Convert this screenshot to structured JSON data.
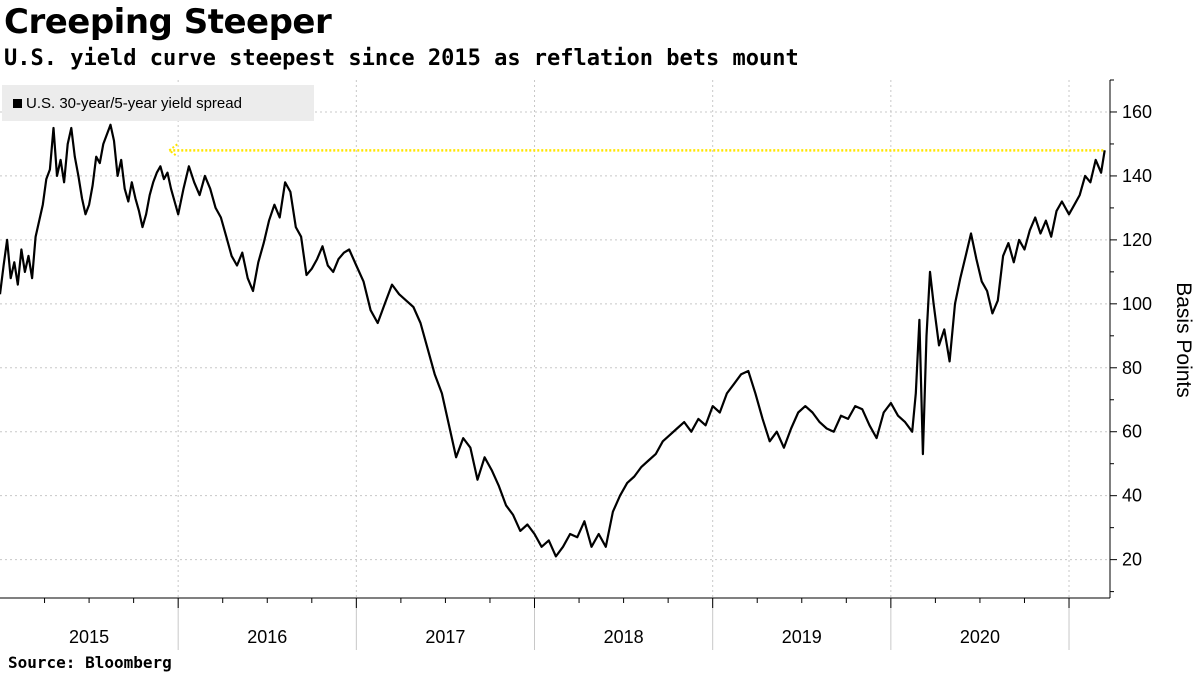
{
  "title": "Creeping Steeper",
  "subtitle": "U.S. yield curve steepest since 2015 as reflation bets mount",
  "source": "Source: Bloomberg",
  "colors": {
    "line": "#000000",
    "reference": "#ffe500",
    "grid": "#c8c8c8",
    "legend_bg": "#ececec"
  },
  "chart_data": {
    "type": "line",
    "title": "Creeping Steeper",
    "subtitle": "U.S. yield curve steepest since 2015 as reflation bets mount",
    "xlabel": "",
    "ylabel": "Basis Points",
    "ylim": [
      8,
      170
    ],
    "xlim": [
      2015.0,
      2021.23
    ],
    "yticks": [
      20,
      40,
      60,
      80,
      100,
      120,
      140,
      160
    ],
    "year_labels": [
      "2015",
      "2016",
      "2017",
      "2018",
      "2019",
      "2020"
    ],
    "legend": [
      "U.S. 30-year/5-year yield spread"
    ],
    "grid": true,
    "reference_line": {
      "y": 148,
      "x_from": 2015.95,
      "x_to": 2021.2,
      "label": ""
    },
    "series": [
      {
        "name": "U.S. 30-year/5-year yield spread",
        "x": [
          2015.0,
          2015.02,
          2015.04,
          2015.06,
          2015.08,
          2015.1,
          2015.12,
          2015.14,
          2015.16,
          2015.18,
          2015.2,
          2015.22,
          2015.24,
          2015.26,
          2015.28,
          2015.3,
          2015.32,
          2015.34,
          2015.36,
          2015.38,
          2015.4,
          2015.42,
          2015.44,
          2015.46,
          2015.48,
          2015.5,
          2015.52,
          2015.54,
          2015.56,
          2015.58,
          2015.6,
          2015.62,
          2015.64,
          2015.66,
          2015.68,
          2015.7,
          2015.72,
          2015.74,
          2015.76,
          2015.78,
          2015.8,
          2015.82,
          2015.84,
          2015.86,
          2015.88,
          2015.9,
          2015.92,
          2015.94,
          2015.96,
          2015.98,
          2016.0,
          2016.03,
          2016.06,
          2016.09,
          2016.12,
          2016.15,
          2016.18,
          2016.21,
          2016.24,
          2016.27,
          2016.3,
          2016.33,
          2016.36,
          2016.39,
          2016.42,
          2016.45,
          2016.48,
          2016.51,
          2016.54,
          2016.57,
          2016.6,
          2016.63,
          2016.66,
          2016.69,
          2016.72,
          2016.75,
          2016.78,
          2016.81,
          2016.84,
          2016.87,
          2016.9,
          2016.93,
          2016.96,
          2017.0,
          2017.04,
          2017.08,
          2017.12,
          2017.16,
          2017.2,
          2017.24,
          2017.28,
          2017.32,
          2017.36,
          2017.4,
          2017.44,
          2017.48,
          2017.52,
          2017.56,
          2017.6,
          2017.64,
          2017.68,
          2017.72,
          2017.76,
          2017.8,
          2017.84,
          2017.88,
          2017.92,
          2017.96,
          2018.0,
          2018.04,
          2018.08,
          2018.12,
          2018.16,
          2018.2,
          2018.24,
          2018.28,
          2018.32,
          2018.36,
          2018.4,
          2018.44,
          2018.48,
          2018.52,
          2018.56,
          2018.6,
          2018.64,
          2018.68,
          2018.72,
          2018.76,
          2018.8,
          2018.84,
          2018.88,
          2018.92,
          2018.96,
          2019.0,
          2019.04,
          2019.08,
          2019.12,
          2019.16,
          2019.2,
          2019.24,
          2019.28,
          2019.32,
          2019.36,
          2019.4,
          2019.44,
          2019.48,
          2019.52,
          2019.56,
          2019.6,
          2019.64,
          2019.68,
          2019.72,
          2019.76,
          2019.8,
          2019.84,
          2019.88,
          2019.92,
          2019.96,
          2020.0,
          2020.04,
          2020.08,
          2020.12,
          2020.14,
          2020.16,
          2020.18,
          2020.2,
          2020.22,
          2020.24,
          2020.27,
          2020.3,
          2020.33,
          2020.36,
          2020.39,
          2020.42,
          2020.45,
          2020.48,
          2020.51,
          2020.54,
          2020.57,
          2020.6,
          2020.63,
          2020.66,
          2020.69,
          2020.72,
          2020.75,
          2020.78,
          2020.81,
          2020.84,
          2020.87,
          2020.9,
          2020.93,
          2020.96,
          2021.0,
          2021.03,
          2021.06,
          2021.09,
          2021.12,
          2021.15,
          2021.18,
          2021.2
        ],
        "values": [
          103,
          112,
          120,
          108,
          113,
          106,
          117,
          110,
          115,
          108,
          121,
          126,
          131,
          139,
          142,
          155,
          140,
          145,
          138,
          150,
          155,
          146,
          140,
          133,
          128,
          131,
          137,
          146,
          144,
          150,
          153,
          156,
          151,
          140,
          145,
          136,
          132,
          138,
          133,
          129,
          124,
          128,
          134,
          138,
          141,
          143,
          139,
          141,
          136,
          132,
          128,
          136,
          143,
          138,
          134,
          140,
          136,
          130,
          127,
          121,
          115,
          112,
          116,
          108,
          104,
          113,
          119,
          126,
          131,
          127,
          138,
          135,
          124,
          121,
          109,
          111,
          114,
          118,
          112,
          110,
          114,
          116,
          117,
          112,
          107,
          98,
          94,
          100,
          106,
          103,
          101,
          99,
          94,
          86,
          78,
          72,
          62,
          52,
          58,
          55,
          45,
          52,
          48,
          43,
          37,
          34,
          29,
          31,
          28,
          24,
          26,
          21,
          24,
          28,
          27,
          32,
          24,
          28,
          24,
          35,
          40,
          44,
          46,
          49,
          51,
          53,
          57,
          59,
          61,
          63,
          60,
          64,
          62,
          68,
          66,
          72,
          75,
          78,
          79,
          72,
          64,
          57,
          60,
          55,
          61,
          66,
          68,
          66,
          63,
          61,
          60,
          65,
          64,
          68,
          67,
          62,
          58,
          66,
          69,
          65,
          63,
          60,
          72,
          95,
          53,
          90,
          110,
          100,
          87,
          92,
          82,
          100,
          108,
          115,
          122,
          114,
          107,
          104,
          97,
          101,
          115,
          119,
          113,
          120,
          117,
          123,
          127,
          122,
          126,
          121,
          129,
          132,
          128,
          131,
          134,
          140,
          138,
          145,
          141,
          148
        ]
      }
    ]
  }
}
